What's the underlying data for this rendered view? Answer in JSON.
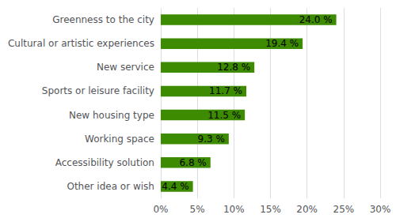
{
  "chart_data": {
    "type": "bar",
    "orientation": "horizontal",
    "categories": [
      "Other idea or wish",
      "Accessibility solution",
      "Working space",
      "New housing type",
      "Sports or leisure facility",
      "New service",
      "Cultural or artistic experiences",
      "Greenness to the city"
    ],
    "values": [
      4.4,
      6.8,
      9.3,
      11.5,
      11.7,
      12.8,
      19.4,
      24.0
    ],
    "value_labels": [
      "4.4 %",
      "6.8 %",
      "9.3 %",
      "11.5 %",
      "11.7 %",
      "12.8 %",
      "19.4 %",
      "24.0 %"
    ],
    "data_labels": true,
    "color": "#3d8b00",
    "xlim": [
      0,
      30
    ],
    "xticks": [
      {
        "value": 0,
        "label": "0%"
      },
      {
        "value": 5,
        "label": "5%"
      },
      {
        "value": 10,
        "label": "10%"
      },
      {
        "value": 15,
        "label": "15%"
      },
      {
        "value": 20,
        "label": "20%"
      },
      {
        "value": 25,
        "label": "25%"
      },
      {
        "value": 30,
        "label": "30%"
      }
    ],
    "grid": true
  }
}
